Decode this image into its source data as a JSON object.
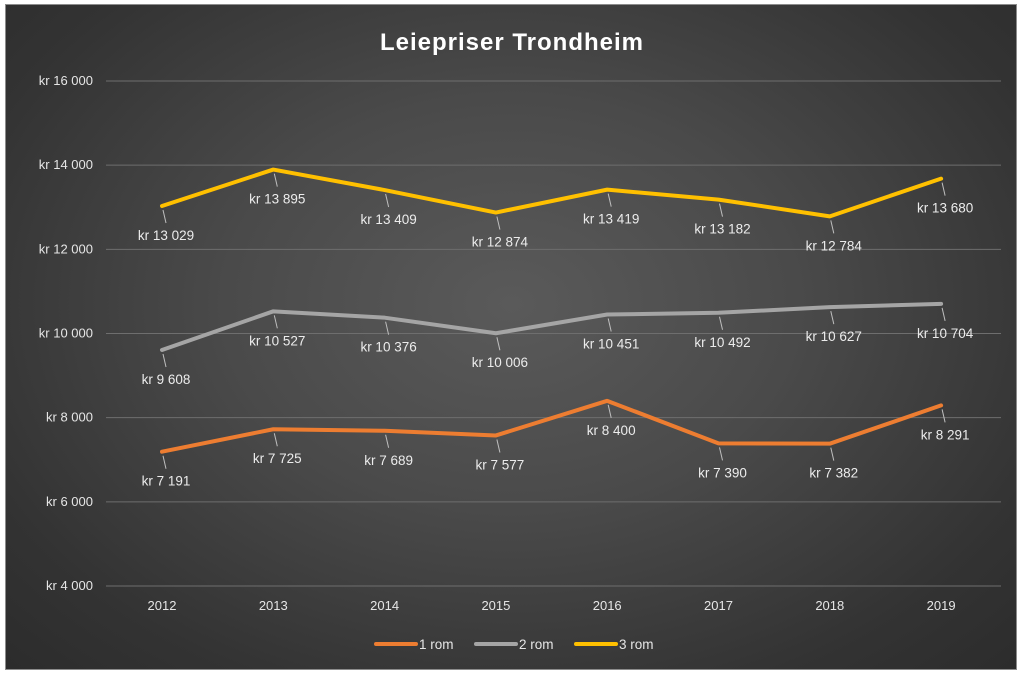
{
  "chart_data": {
    "type": "line",
    "title": "Leiepriser Trondheim",
    "xlabel": "",
    "ylabel": "",
    "categories": [
      "2012",
      "2013",
      "2014",
      "2015",
      "2016",
      "2017",
      "2018",
      "2019"
    ],
    "ylim": [
      4000,
      16000
    ],
    "yticks": [
      4000,
      6000,
      8000,
      10000,
      12000,
      14000,
      16000
    ],
    "ytick_labels": [
      "kr 4 000",
      "kr 6 000",
      "kr 8 000",
      "kr 10 000",
      "kr 12 000",
      "kr 14 000",
      "kr 16 000"
    ],
    "grid": true,
    "legend_position": "bottom",
    "series": [
      {
        "name": "1 rom",
        "color": "#ed7d31",
        "values": [
          7191,
          7725,
          7689,
          7577,
          8400,
          7390,
          7382,
          8291
        ],
        "labels": [
          "kr 7 191",
          "kr 7 725",
          "kr 7 689",
          "kr 7 577",
          "kr 8 400",
          "kr 7 390",
          "kr 7 382",
          "kr 8 291"
        ]
      },
      {
        "name": "2 rom",
        "color": "#a5a5a5",
        "values": [
          9608,
          10527,
          10376,
          10006,
          10451,
          10492,
          10627,
          10704
        ],
        "labels": [
          "kr 9 608",
          "kr 10 527",
          "kr 10 376",
          "kr 10 006",
          "kr 10 451",
          "kr 10 492",
          "kr 10 627",
          "kr 10 704"
        ]
      },
      {
        "name": "3 rom",
        "color": "#ffc000",
        "values": [
          13029,
          13895,
          13409,
          12874,
          13419,
          13182,
          12784,
          13680
        ],
        "labels": [
          "kr 13 029",
          "kr 13 895",
          "kr 13 409",
          "kr 12 874",
          "kr 13 419",
          "kr 13 182",
          "kr 12 784",
          "kr 13 680"
        ]
      }
    ]
  }
}
